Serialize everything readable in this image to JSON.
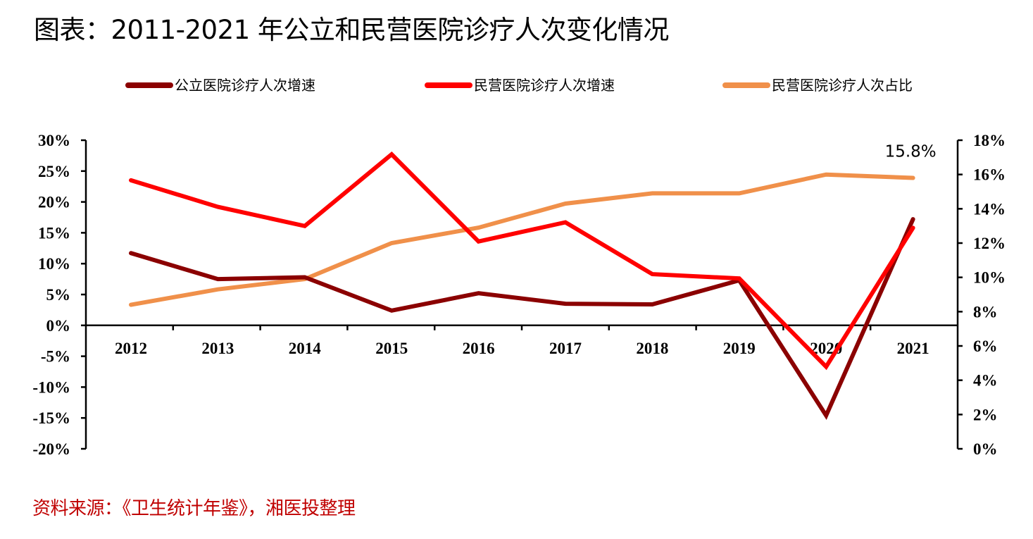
{
  "title": "图表：2011-2021 年公立和民营医院诊疗人次变化情况",
  "source": "资料来源：《卫生统计年鉴》，湘医投整理",
  "chart_data": {
    "type": "line",
    "title": "图表：2011-2021 年公立和民营医院诊疗人次变化情况",
    "xlabel": "",
    "ylabel": "",
    "categories": [
      "2012",
      "2013",
      "2014",
      "2015",
      "2016",
      "2017",
      "2018",
      "2019",
      "2020",
      "2021"
    ],
    "y_left": {
      "range": [
        -20,
        30
      ],
      "ticks": [
        30,
        25,
        20,
        15,
        10,
        5,
        0,
        -5,
        -10,
        -15,
        -20
      ],
      "tick_labels": [
        "30%",
        "25%",
        "20%",
        "15%",
        "10%",
        "5%",
        "0%",
        "-5%",
        "-10%",
        "-15%",
        "-20%"
      ],
      "unit": "%"
    },
    "y_right": {
      "range": [
        0,
        18
      ],
      "ticks": [
        18,
        16,
        14,
        12,
        10,
        8,
        6,
        4,
        2,
        0
      ],
      "tick_labels": [
        "18%",
        "16%",
        "14%",
        "12%",
        "10%",
        "8%",
        "6%",
        "4%",
        "2%",
        "0%"
      ],
      "unit": "%"
    },
    "series": [
      {
        "name": "公立医院诊疗人次增速",
        "axis": "left",
        "color": "#8b0000",
        "values": [
          11.7,
          7.5,
          7.8,
          2.4,
          5.2,
          3.5,
          3.4,
          7.3,
          -14.6,
          17.2
        ]
      },
      {
        "name": "民营医院诊疗人次增速",
        "axis": "left",
        "color": "#ff0000",
        "values": [
          23.5,
          19.2,
          16.1,
          27.7,
          13.6,
          16.7,
          8.3,
          7.6,
          -6.7,
          15.8
        ]
      },
      {
        "name": "民营医院诊疗人次占比",
        "axis": "right",
        "color": "#f0904a",
        "values": [
          8.4,
          9.3,
          9.9,
          12.0,
          12.9,
          14.3,
          14.9,
          14.9,
          16.0,
          15.8
        ]
      }
    ],
    "annotations": [
      {
        "text": "15.8%",
        "series": "民营医院诊疗人次占比",
        "category": "2021"
      }
    ],
    "legend_position": "top",
    "grid": false
  }
}
